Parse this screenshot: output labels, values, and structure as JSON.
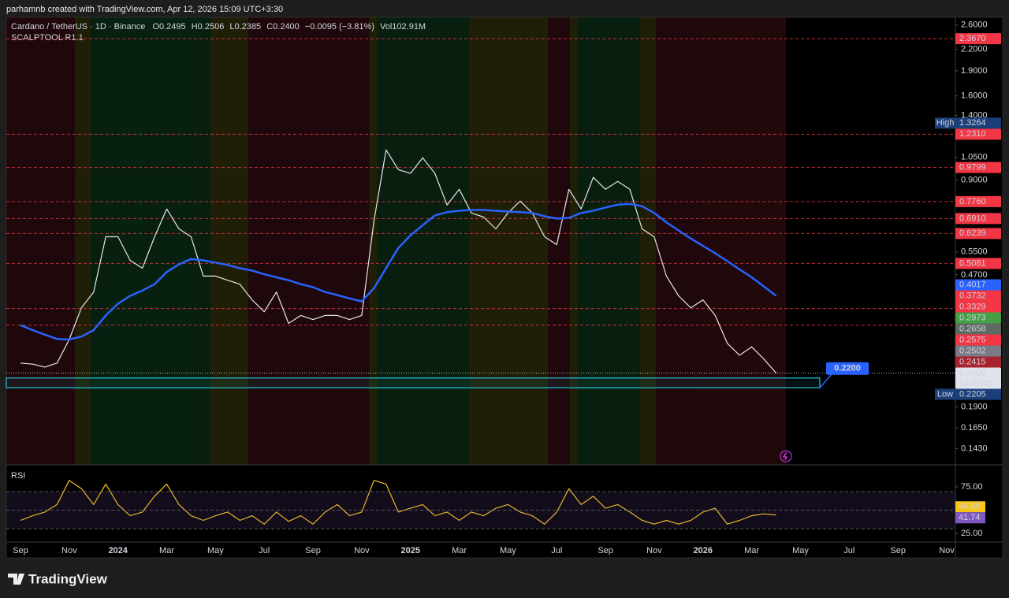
{
  "header": {
    "caption": "parhamnb created with TradingView.com, Apr 12, 2026 15:09 UTC+3:30"
  },
  "chart_data": {
    "type": "line",
    "title": "Cardano / TetherUS · 1D · Binance",
    "ohlc": [
      "O0.2495",
      "H0.2506",
      "L0.2385",
      "C0.2400",
      "−0.0095 (−3.81%)",
      "Vol102.91M"
    ],
    "indicator": "SCALPTOOL R1.1",
    "log_scale": true,
    "categories": [
      "Sep",
      null,
      null,
      null,
      "Nov",
      null,
      null,
      null,
      "2024",
      null,
      null,
      null,
      "Mar",
      null,
      null,
      null,
      "May",
      null,
      null,
      null,
      "Jul",
      null,
      null,
      null,
      "Sep",
      null,
      null,
      null,
      "Nov",
      null,
      null,
      null,
      "2025",
      null,
      null,
      null,
      "Mar",
      null,
      null,
      null,
      "May",
      null,
      null,
      null,
      "Jul",
      null,
      null,
      null,
      "Sep",
      null,
      null,
      null,
      "Nov",
      null,
      null,
      null,
      "2026",
      null,
      null,
      null,
      "Mar",
      null,
      null,
      null,
      "May",
      null,
      null,
      null,
      "Jul",
      null,
      null,
      null,
      "Sep",
      null,
      null,
      null,
      "Nov"
    ],
    "series": [
      {
        "color": "#e6e6e6",
        "values": [
          0.257,
          0.255,
          0.25,
          0.257,
          0.302,
          0.375,
          0.418,
          0.61,
          0.61,
          0.519,
          0.492,
          0.61,
          0.738,
          0.644,
          0.61,
          0.466,
          0.466,
          0.453,
          0.441,
          0.396,
          0.365,
          0.418,
          0.337,
          0.356,
          0.346,
          0.356,
          0.356,
          0.346,
          0.356,
          0.68,
          1.106,
          0.966,
          0.941,
          1.048,
          0.941,
          0.758,
          0.844,
          0.718,
          0.698,
          0.644,
          0.718,
          0.779,
          0.718,
          0.61,
          0.578,
          0.844,
          0.738,
          0.916,
          0.844,
          0.891,
          0.844,
          0.644,
          0.61,
          0.466,
          0.407,
          0.375,
          0.396,
          0.356,
          0.294,
          0.271,
          0.287,
          0.264,
          0.24,
          null,
          null,
          null,
          null,
          null,
          null,
          null,
          null,
          null,
          null,
          null,
          null,
          null,
          null
        ]
      },
      {
        "color": "#2962ff",
        "values": [
          0.333,
          0.322,
          0.312,
          0.303,
          0.302,
          0.308,
          0.322,
          0.356,
          0.386,
          0.407,
          0.422,
          0.441,
          0.479,
          0.505,
          0.524,
          0.519,
          0.511,
          0.503,
          0.492,
          0.484,
          0.472,
          0.462,
          0.453,
          0.441,
          0.432,
          0.418,
          0.409,
          0.4,
          0.392,
          0.429,
          0.492,
          0.565,
          0.616,
          0.66,
          0.706,
          0.722,
          0.729,
          0.733,
          0.733,
          0.729,
          0.725,
          0.722,
          0.718,
          0.702,
          0.691,
          0.694,
          0.718,
          0.729,
          0.745,
          0.76,
          0.764,
          0.752,
          0.718,
          0.673,
          0.637,
          0.603,
          0.573,
          0.545,
          0.516,
          0.488,
          0.462,
          0.434,
          0.407,
          null,
          null,
          null,
          null,
          null,
          null,
          null,
          null,
          null,
          null,
          null,
          null,
          null,
          null
        ]
      }
    ],
    "ylim": [
      0.128,
      2.74
    ],
    "yticks": [
      {
        "value": 2.6,
        "label": "2.6000"
      },
      {
        "value": 2.2,
        "label": "2.2000"
      },
      {
        "value": 1.9,
        "label": "1.9000"
      },
      {
        "value": 1.6,
        "label": "1.6000"
      },
      {
        "value": 1.4,
        "label": "1.4000"
      },
      {
        "value": 1.05,
        "label": "1.0500"
      },
      {
        "value": 0.9,
        "label": "0.9000"
      },
      {
        "value": 0.55,
        "label": "0.5500"
      },
      {
        "value": 0.47,
        "label": "0.4700"
      },
      {
        "value": 0.19,
        "label": "0.1900"
      },
      {
        "value": 0.165,
        "label": "0.1650"
      },
      {
        "value": 0.143,
        "label": "0.1430"
      }
    ],
    "price_labels": [
      {
        "value": 2.367,
        "label": "2.3670",
        "color": "#f23645",
        "line": "dashed"
      },
      {
        "value": 1.3264,
        "label": "1.3264",
        "color": "#1c3f7a",
        "tag": "High"
      },
      {
        "value": 1.231,
        "label": "1.2310",
        "color": "#f23645",
        "line": "dashed"
      },
      {
        "value": 0.9799,
        "label": "0.9799",
        "color": "#f23645",
        "line": "dashed"
      },
      {
        "value": 0.776,
        "label": "0.7760",
        "color": "#f23645",
        "line": "dashed"
      },
      {
        "value": 0.691,
        "label": "0.6910",
        "color": "#f23645",
        "line": "dashed"
      },
      {
        "value": 0.6239,
        "label": "0.6239",
        "color": "#f23645",
        "line": "dashed"
      },
      {
        "value": 0.5081,
        "label": "0.5081",
        "color": "#f23645",
        "line": "dashed"
      },
      {
        "value": 0.4017,
        "label": "0.4017",
        "color": "#2962ff"
      },
      {
        "value": 0.3732,
        "label": "0.3732",
        "color": "#f23645",
        "line": "dashed"
      },
      {
        "value": 0.3329,
        "label": "0.3329",
        "color": "#f23645",
        "line": "dashed"
      },
      {
        "value": 0.2973,
        "label": "0.2973",
        "color": "#43a047"
      },
      {
        "value": 0.2658,
        "label": "0.2658",
        "color": "#5d6b62"
      },
      {
        "value": 0.2575,
        "label": "0.2575",
        "color": "#f23645"
      },
      {
        "value": 0.2502,
        "label": "0.2502",
        "color": "#787b86"
      },
      {
        "value": 0.2415,
        "label": "0.2415",
        "color": "#a8232e"
      },
      {
        "value": 0.24,
        "label": "0.2400",
        "color": "#e0e3eb",
        "line": "dotted",
        "time": "12:20:55"
      },
      {
        "value": 0.2205,
        "label": "0.2205",
        "color": "#1c3f7a",
        "tag": "Low"
      }
    ],
    "zone": {
      "low": 0.217,
      "high": 0.232,
      "label": "0.2200"
    },
    "rsi": {
      "title": "RSI",
      "ylim": [
        15.7,
        97
      ],
      "yticks": [
        {
          "value": 75,
          "label": "75.00"
        },
        {
          "value": 25,
          "label": "25.00"
        }
      ],
      "levels": [
        70,
        50,
        30
      ],
      "series": [
        {
          "color": "#f5c518",
          "values": [
            39,
            44,
            48,
            56,
            82,
            73,
            56,
            78,
            56,
            44,
            48,
            65,
            78,
            56,
            44,
            39,
            44,
            48,
            39,
            44,
            35,
            48,
            38,
            44,
            35,
            48,
            56,
            44,
            48,
            82,
            78,
            48,
            52,
            56,
            44,
            48,
            39,
            48,
            44,
            52,
            56,
            48,
            44,
            35,
            48,
            73,
            56,
            65,
            52,
            56,
            48,
            39,
            35,
            39,
            35,
            39,
            48,
            52,
            35,
            39,
            44,
            46,
            44.85,
            null,
            null,
            null,
            null,
            null,
            null,
            null,
            null,
            null,
            null,
            null,
            null,
            null,
            null
          ]
        }
      ],
      "last_labels": [
        {
          "value": 44.85,
          "label": "44.85",
          "color": "#f5c518"
        },
        {
          "value": 41.74,
          "label": "41.74",
          "color": "#7e57c2"
        }
      ]
    }
  },
  "footer": {
    "brand": "TradingView"
  }
}
